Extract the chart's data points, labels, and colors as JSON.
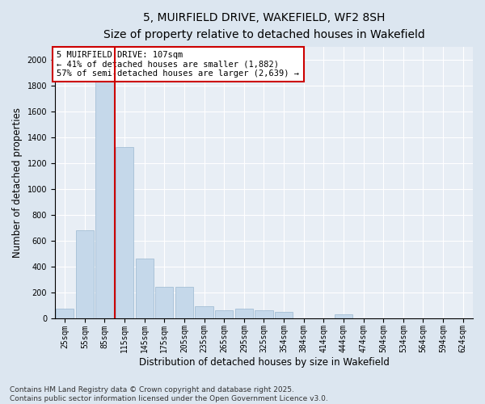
{
  "title_line1": "5, MUIRFIELD DRIVE, WAKEFIELD, WF2 8SH",
  "title_line2": "Size of property relative to detached houses in Wakefield",
  "xlabel": "Distribution of detached houses by size in Wakefield",
  "ylabel": "Number of detached properties",
  "categories": [
    "25sqm",
    "55sqm",
    "85sqm",
    "115sqm",
    "145sqm",
    "175sqm",
    "205sqm",
    "235sqm",
    "265sqm",
    "295sqm",
    "325sqm",
    "354sqm",
    "384sqm",
    "414sqm",
    "444sqm",
    "474sqm",
    "504sqm",
    "534sqm",
    "564sqm",
    "594sqm",
    "624sqm"
  ],
  "values": [
    75,
    680,
    1880,
    1320,
    460,
    240,
    240,
    90,
    60,
    70,
    60,
    50,
    0,
    0,
    30,
    0,
    0,
    0,
    0,
    0,
    0
  ],
  "bar_color": "#c5d8ea",
  "bar_edge_color": "#9ab8d0",
  "vline_index": 2.5,
  "vline_color": "#cc0000",
  "annotation_text": "5 MUIRFIELD DRIVE: 107sqm\n← 41% of detached houses are smaller (1,882)\n57% of semi-detached houses are larger (2,639) →",
  "annotation_box_color": "#ffffff",
  "annotation_box_edge": "#cc0000",
  "ylim": [
    0,
    2100
  ],
  "yticks": [
    0,
    200,
    400,
    600,
    800,
    1000,
    1200,
    1400,
    1600,
    1800,
    2000
  ],
  "footnote": "Contains HM Land Registry data © Crown copyright and database right 2025.\nContains public sector information licensed under the Open Government Licence v3.0.",
  "bg_color": "#dce6f0",
  "plot_bg_color": "#e8eef5",
  "grid_color": "#ffffff",
  "title_fontsize": 10,
  "subtitle_fontsize": 9,
  "tick_fontsize": 7,
  "label_fontsize": 8.5,
  "footnote_fontsize": 6.5,
  "annotation_fontsize": 7.5
}
